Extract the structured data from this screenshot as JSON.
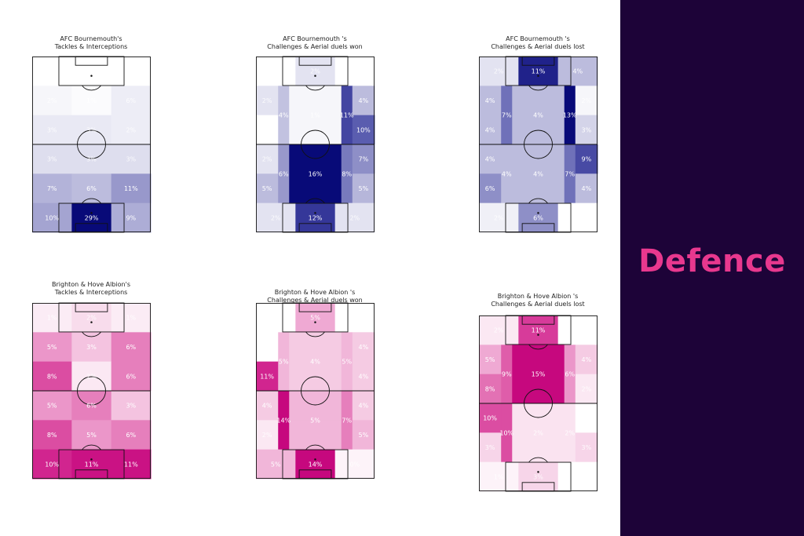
{
  "side_panel": {
    "title": "Defence"
  },
  "colors": {
    "panel_bg": "#1d0338",
    "title_pink": "#e8388e"
  },
  "chart_data": [
    {
      "type": "heatmap",
      "title_line1": "AFC Bournemouth's",
      "title_line2": "Tackles & Interceptions",
      "colormap": "Blues",
      "zone_grid": "6 rows x 3 cols (bottom two rows split 5 cols)",
      "labels": [
        [
          "6%",
          "6%",
          "6%"
        ],
        [
          "2%",
          "1%",
          "6%"
        ],
        [
          "3%",
          "3%",
          "2%"
        ],
        [
          "3%",
          "3%",
          "3%"
        ],
        [
          "7%",
          "6%",
          "11%"
        ],
        [
          "10%",
          "29%",
          "9%"
        ]
      ],
      "shade": [
        [
          0.0,
          0.0,
          0.0
        ],
        [
          0.05,
          0.02,
          0.1
        ],
        [
          0.12,
          0.12,
          0.1
        ],
        [
          0.18,
          0.18,
          0.18
        ],
        [
          0.33,
          0.3,
          0.42
        ],
        [
          0.38,
          1.0,
          0.35
        ]
      ]
    },
    {
      "type": "heatmap",
      "title_line1": "AFC Bournemouth 's",
      "title_line2": "Challenges & Aerial duels won",
      "colormap": "Blues",
      "labels": [
        [
          "0%",
          "2%",
          "0%"
        ],
        [
          "2%",
          "4%",
          "1%",
          "11%",
          "4%"
        ],
        [
          "0%",
          "",
          "",
          "",
          "10%"
        ],
        [
          "2%",
          "6%",
          "16%",
          "8%",
          "7%"
        ],
        [
          "5%",
          "",
          "",
          "",
          "5%"
        ],
        [
          "2%",
          "12%",
          "2%"
        ]
      ],
      "shade": [
        [
          0.0,
          0.15,
          0.0
        ],
        [
          0.15,
          0.28,
          0.05,
          0.72,
          0.3
        ],
        [
          0.0,
          0.28,
          0.05,
          0.72,
          0.62
        ],
        [
          0.15,
          0.42,
          1.0,
          0.52,
          0.45
        ],
        [
          0.3,
          0.42,
          1.0,
          0.52,
          0.32
        ],
        [
          0.15,
          0.78,
          0.15
        ]
      ]
    },
    {
      "type": "heatmap",
      "title_line1": "AFC Bournemouth 's",
      "title_line2": "Challenges & Aerial duels lost",
      "colormap": "Blues",
      "labels": [
        [
          "2%",
          "11%",
          "4%"
        ],
        [
          "4%",
          "7%",
          "4%",
          "13%",
          "2%"
        ],
        [
          "4%",
          "",
          "",
          "",
          "3%"
        ],
        [
          "4%",
          "4%",
          "4%",
          "7%",
          "9%"
        ],
        [
          "6%",
          "",
          "",
          "",
          "4%"
        ],
        [
          "2%",
          "6%",
          "0%"
        ]
      ],
      "shade": [
        [
          0.15,
          0.88,
          0.3
        ],
        [
          0.3,
          0.55,
          0.3,
          1.0,
          0.05
        ],
        [
          0.3,
          0.55,
          0.3,
          1.0,
          0.22
        ],
        [
          0.3,
          0.3,
          0.3,
          0.55,
          0.7
        ],
        [
          0.45,
          0.3,
          0.3,
          0.55,
          0.3
        ],
        [
          0.08,
          0.45,
          0.0
        ]
      ]
    },
    {
      "type": "heatmap",
      "title_line1": "Brighton & Hove Albion's",
      "title_line2": "Tackles & Interceptions",
      "colormap": "Pinks",
      "labels": [
        [
          "1%",
          "2%",
          "1%"
        ],
        [
          "5%",
          "3%",
          "6%"
        ],
        [
          "8%",
          "2%",
          "6%"
        ],
        [
          "5%",
          "6%",
          "3%"
        ],
        [
          "8%",
          "5%",
          "6%"
        ],
        [
          "10%",
          "11%",
          "11%"
        ]
      ],
      "shade": [
        [
          0.08,
          0.15,
          0.08
        ],
        [
          0.42,
          0.25,
          0.5
        ],
        [
          0.68,
          0.1,
          0.5
        ],
        [
          0.42,
          0.5,
          0.25
        ],
        [
          0.68,
          0.42,
          0.5
        ],
        [
          0.85,
          0.95,
          0.95
        ]
      ]
    },
    {
      "type": "heatmap",
      "title_line1": "Brighton & Hove Albion 's",
      "title_line2": "Challenges & Aerial duels won",
      "colormap": "Pinks",
      "labels": [
        [
          "0%",
          "5%",
          "0%"
        ],
        [
          "0%",
          "5%",
          "4%",
          "5%",
          "4%"
        ],
        [
          "11%",
          "",
          "",
          "",
          "4%"
        ],
        [
          "4%",
          "14%",
          "5%",
          "7%",
          "4%"
        ],
        [
          "2%",
          "",
          "",
          "",
          "5%"
        ],
        [
          "5%",
          "14%",
          "0%"
        ]
      ],
      "shade": [
        [
          0.0,
          0.35,
          0.0
        ],
        [
          0.0,
          0.3,
          0.22,
          0.3,
          0.22
        ],
        [
          0.85,
          0.3,
          0.22,
          0.3,
          0.22
        ],
        [
          0.22,
          1.0,
          0.3,
          0.5,
          0.22
        ],
        [
          0.1,
          1.0,
          0.3,
          0.5,
          0.3
        ],
        [
          0.3,
          1.0,
          0.05
        ]
      ]
    },
    {
      "type": "heatmap",
      "title_line1": "Brighton & Hove Albion 's",
      "title_line2": "Challenges & Aerial duels lost",
      "colormap": "Pinks",
      "labels": [
        [
          "2%",
          "11%",
          "0%"
        ],
        [
          "5%",
          "9%",
          "15%",
          "6%",
          "4%"
        ],
        [
          "8%",
          "",
          "",
          "",
          "2%"
        ],
        [
          "10%",
          "10%",
          "2%",
          "2%",
          "0%"
        ],
        [
          "3%",
          "",
          "",
          "",
          "3%"
        ],
        [
          "1%",
          "3%",
          "0%"
        ]
      ],
      "shade": [
        [
          0.1,
          0.75,
          0.0
        ],
        [
          0.35,
          0.62,
          1.0,
          0.42,
          0.22
        ],
        [
          0.55,
          0.62,
          1.0,
          0.42,
          0.1
        ],
        [
          0.68,
          0.68,
          0.12,
          0.12,
          0.0
        ],
        [
          0.18,
          0.68,
          0.12,
          0.12,
          0.18
        ],
        [
          0.05,
          0.18,
          0.0
        ]
      ]
    }
  ]
}
